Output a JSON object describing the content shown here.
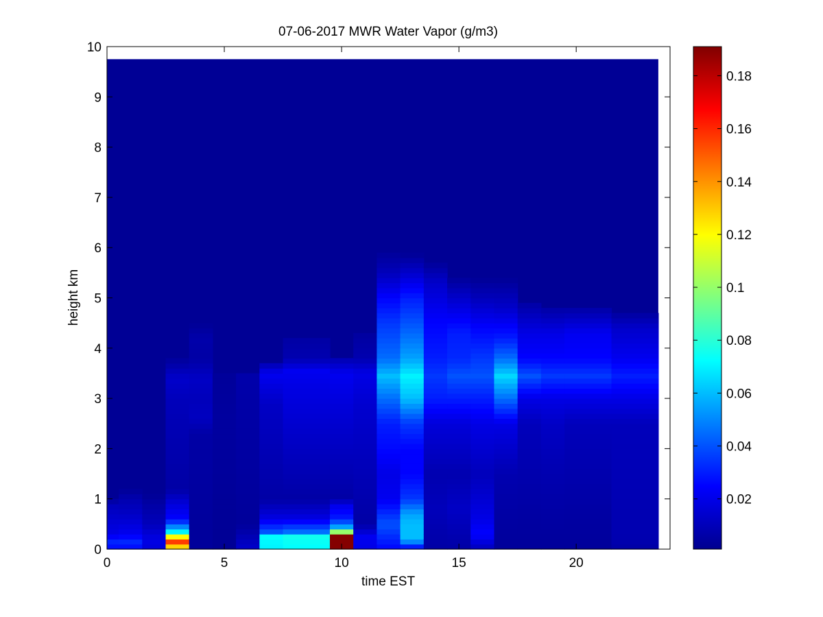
{
  "chart_data": {
    "type": "heatmap",
    "title": "07-06-2017 MWR Water Vapor (g/m3)",
    "xlabel": "time EST",
    "ylabel": "height km",
    "xlim": [
      0,
      24
    ],
    "ylim": [
      0,
      10
    ],
    "x_ticks": [
      0,
      5,
      10,
      15,
      20
    ],
    "y_ticks": [
      0,
      1,
      2,
      3,
      4,
      5,
      6,
      7,
      8,
      9,
      10
    ],
    "colorbar": {
      "colormap": "jet",
      "clim": [
        0.001,
        0.191
      ],
      "ticks": [
        0.02,
        0.04,
        0.06,
        0.08,
        0.1,
        0.12,
        0.14,
        0.16,
        0.18
      ],
      "tick_labels": [
        "0.02",
        "0.04",
        "0.06",
        "0.08",
        "0.1",
        "0.12",
        "0.14",
        "0.16",
        "0.18"
      ]
    },
    "grid": false,
    "data_extent": {
      "x": [
        0,
        23.5
      ],
      "y": [
        0,
        9.75
      ]
    },
    "background_value": 0.005,
    "time_columns": [
      {
        "t": [
          0.0,
          0.5
        ],
        "profile": [
          [
            0,
            0.02
          ],
          [
            0.1,
            0.035
          ],
          [
            0.3,
            0.02
          ],
          [
            0.9,
            0.012
          ],
          [
            1.0,
            0.005
          ]
        ]
      },
      {
        "t": [
          0.5,
          1.5
        ],
        "profile": [
          [
            0,
            0.02
          ],
          [
            0.1,
            0.035
          ],
          [
            0.3,
            0.022
          ],
          [
            0.7,
            0.014
          ],
          [
            1.0,
            0.01
          ],
          [
            1.2,
            0.005
          ]
        ]
      },
      {
        "t": [
          1.5,
          2.5
        ],
        "profile": [
          [
            0,
            0.018
          ],
          [
            0.2,
            0.02
          ],
          [
            0.5,
            0.012
          ],
          [
            0.9,
            0.008
          ],
          [
            1.1,
            0.005
          ]
        ]
      },
      {
        "t": [
          2.5,
          3.5
        ],
        "profile": [
          [
            0,
            0.09
          ],
          [
            0.08,
            0.15
          ],
          [
            0.2,
            0.16
          ],
          [
            0.3,
            0.08
          ],
          [
            0.45,
            0.05
          ],
          [
            0.6,
            0.025
          ],
          [
            0.9,
            0.018
          ],
          [
            1.2,
            0.008
          ],
          [
            3.0,
            0.012
          ],
          [
            3.4,
            0.015
          ],
          [
            3.8,
            0.006
          ]
        ]
      },
      {
        "t": [
          3.5,
          4.5
        ],
        "profile": [
          [
            0,
            0.006
          ],
          [
            2.3,
            0.008
          ],
          [
            2.6,
            0.013
          ],
          [
            3.0,
            0.012
          ],
          [
            3.4,
            0.014
          ],
          [
            3.8,
            0.008
          ],
          [
            4.2,
            0.009
          ],
          [
            4.5,
            0.005
          ]
        ]
      },
      {
        "t": [
          4.5,
          5.5
        ],
        "profile": [
          [
            0,
            0.005
          ],
          [
            2.5,
            0.007
          ],
          [
            3.5,
            0.006
          ]
        ]
      },
      {
        "t": [
          5.5,
          6.5
        ],
        "profile": [
          [
            0,
            0.015
          ],
          [
            0.2,
            0.012
          ],
          [
            0.5,
            0.006
          ],
          [
            3.5,
            0.009
          ]
        ]
      },
      {
        "t": [
          6.5,
          7.5
        ],
        "profile": [
          [
            0,
            0.07
          ],
          [
            0.25,
            0.072
          ],
          [
            0.35,
            0.04
          ],
          [
            0.6,
            0.02
          ],
          [
            1.0,
            0.008
          ],
          [
            2.9,
            0.014
          ],
          [
            3.5,
            0.022
          ],
          [
            3.7,
            0.01
          ]
        ]
      },
      {
        "t": [
          7.5,
          9.5
        ],
        "profile": [
          [
            0,
            0.072
          ],
          [
            0.25,
            0.075
          ],
          [
            0.35,
            0.045
          ],
          [
            0.6,
            0.02
          ],
          [
            1.0,
            0.008
          ],
          [
            2.9,
            0.018
          ],
          [
            3.3,
            0.02
          ],
          [
            3.55,
            0.022
          ],
          [
            3.8,
            0.01
          ],
          [
            4.2,
            0.008
          ]
        ]
      },
      {
        "t": [
          9.5,
          10.5
        ],
        "profile": [
          [
            0,
            0.11
          ],
          [
            0.05,
            0.19
          ],
          [
            0.25,
            0.19
          ],
          [
            0.35,
            0.1
          ],
          [
            0.45,
            0.055
          ],
          [
            0.6,
            0.03
          ],
          [
            0.9,
            0.02
          ],
          [
            1.0,
            0.008
          ],
          [
            2.9,
            0.018
          ],
          [
            3.5,
            0.022
          ],
          [
            3.8,
            0.01
          ]
        ]
      },
      {
        "t": [
          10.5,
          11.5
        ],
        "profile": [
          [
            0,
            0.02
          ],
          [
            0.25,
            0.022
          ],
          [
            0.5,
            0.008
          ],
          [
            2.9,
            0.016
          ],
          [
            3.5,
            0.02
          ],
          [
            3.8,
            0.01
          ],
          [
            4.3,
            0.007
          ]
        ]
      },
      {
        "t": [
          11.5,
          12.5
        ],
        "profile": [
          [
            0,
            0.025
          ],
          [
            0.5,
            0.04
          ],
          [
            1.0,
            0.022
          ],
          [
            1.5,
            0.02
          ],
          [
            2.0,
            0.026
          ],
          [
            2.5,
            0.03
          ],
          [
            3.0,
            0.045
          ],
          [
            3.45,
            0.06
          ],
          [
            3.8,
            0.045
          ],
          [
            4.5,
            0.035
          ],
          [
            5.0,
            0.025
          ],
          [
            5.5,
            0.012
          ],
          [
            5.9,
            0.006
          ]
        ]
      },
      {
        "t": [
          12.5,
          13.5
        ],
        "profile": [
          [
            0,
            0.02
          ],
          [
            0.2,
            0.06
          ],
          [
            0.5,
            0.06
          ],
          [
            0.7,
            0.055
          ],
          [
            1.0,
            0.035
          ],
          [
            1.5,
            0.025
          ],
          [
            2.0,
            0.025
          ],
          [
            2.5,
            0.035
          ],
          [
            3.0,
            0.06
          ],
          [
            3.45,
            0.07
          ],
          [
            3.8,
            0.055
          ],
          [
            4.5,
            0.04
          ],
          [
            5.0,
            0.03
          ],
          [
            5.5,
            0.015
          ],
          [
            5.85,
            0.006
          ]
        ]
      },
      {
        "t": [
          13.5,
          14.5
        ],
        "profile": [
          [
            0,
            0.008
          ],
          [
            0.8,
            0.012
          ],
          [
            1.5,
            0.01
          ],
          [
            2.5,
            0.018
          ],
          [
            3.0,
            0.03
          ],
          [
            3.45,
            0.035
          ],
          [
            3.8,
            0.03
          ],
          [
            4.5,
            0.025
          ],
          [
            5.3,
            0.015
          ],
          [
            5.7,
            0.006
          ]
        ]
      },
      {
        "t": [
          14.5,
          15.5
        ],
        "profile": [
          [
            0,
            0.008
          ],
          [
            0.8,
            0.014
          ],
          [
            1.5,
            0.01
          ],
          [
            2.5,
            0.018
          ],
          [
            3.0,
            0.03
          ],
          [
            3.45,
            0.04
          ],
          [
            3.8,
            0.032
          ],
          [
            4.3,
            0.03
          ],
          [
            5.0,
            0.015
          ],
          [
            5.4,
            0.006
          ]
        ]
      },
      {
        "t": [
          15.5,
          16.5
        ],
        "profile": [
          [
            0,
            0.012
          ],
          [
            0.3,
            0.025
          ],
          [
            0.6,
            0.02
          ],
          [
            1.5,
            0.012
          ],
          [
            2.5,
            0.02
          ],
          [
            3.0,
            0.03
          ],
          [
            3.45,
            0.04
          ],
          [
            3.8,
            0.035
          ],
          [
            4.4,
            0.025
          ],
          [
            5.0,
            0.012
          ],
          [
            5.35,
            0.006
          ]
        ]
      },
      {
        "t": [
          16.5,
          17.5
        ],
        "profile": [
          [
            0,
            0.006
          ],
          [
            1.5,
            0.01
          ],
          [
            2.5,
            0.02
          ],
          [
            3.0,
            0.045
          ],
          [
            3.45,
            0.065
          ],
          [
            3.8,
            0.045
          ],
          [
            4.2,
            0.03
          ],
          [
            4.8,
            0.015
          ],
          [
            5.35,
            0.006
          ]
        ]
      },
      {
        "t": [
          17.5,
          18.5
        ],
        "profile": [
          [
            0,
            0.006
          ],
          [
            2.5,
            0.012
          ],
          [
            3.0,
            0.02
          ],
          [
            3.45,
            0.04
          ],
          [
            3.8,
            0.025
          ],
          [
            4.3,
            0.02
          ],
          [
            4.9,
            0.008
          ]
        ]
      },
      {
        "t": [
          18.5,
          19.5
        ],
        "profile": [
          [
            0,
            0.006
          ],
          [
            1.5,
            0.01
          ],
          [
            2.5,
            0.014
          ],
          [
            3.0,
            0.02
          ],
          [
            3.45,
            0.035
          ],
          [
            3.8,
            0.025
          ],
          [
            4.3,
            0.02
          ],
          [
            4.8,
            0.008
          ]
        ]
      },
      {
        "t": [
          19.5,
          21.5
        ],
        "profile": [
          [
            0,
            0.006
          ],
          [
            2.5,
            0.012
          ],
          [
            3.0,
            0.02
          ],
          [
            3.45,
            0.035
          ],
          [
            3.8,
            0.025
          ],
          [
            4.3,
            0.022
          ],
          [
            4.8,
            0.008
          ]
        ]
      },
      {
        "t": [
          21.5,
          23.5
        ],
        "profile": [
          [
            0,
            0.008
          ],
          [
            0.2,
            0.01
          ],
          [
            2.5,
            0.012
          ],
          [
            3.0,
            0.02
          ],
          [
            3.45,
            0.03
          ],
          [
            3.8,
            0.022
          ],
          [
            4.4,
            0.015
          ],
          [
            4.7,
            0.007
          ]
        ]
      }
    ]
  }
}
